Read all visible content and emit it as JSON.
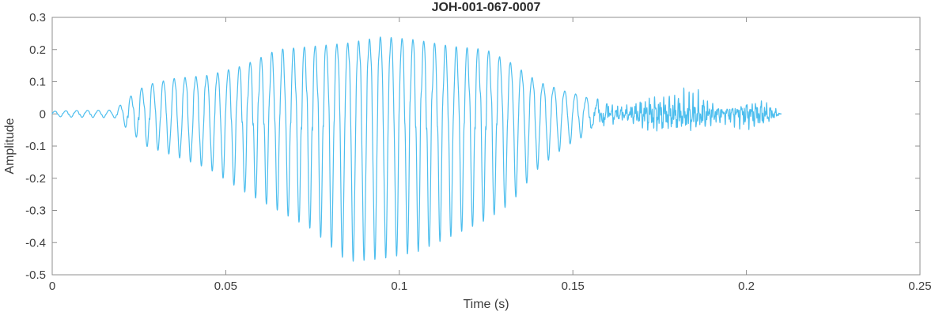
{
  "chart_data": {
    "type": "line",
    "title": "JOH-001-067-0007",
    "xlabel": "Time (s)",
    "ylabel": "Amplitude",
    "xlim": [
      0,
      0.25
    ],
    "ylim": [
      -0.5,
      0.3
    ],
    "grid": false,
    "legend": "none",
    "line_color": "#4DBEEE",
    "axis_color": "#8f8f8f",
    "text_color": "#3c3c3c",
    "title_color": "#2b2b2b",
    "xticks": {
      "values": [
        0,
        0.05,
        0.1,
        0.15,
        0.2,
        0.25
      ],
      "labels": [
        "0",
        "0.05",
        "0.1",
        "0.15",
        "0.2",
        "0.25"
      ]
    },
    "yticks": {
      "values": [
        -0.5,
        -0.4,
        -0.3,
        -0.2,
        -0.1,
        0,
        0.1,
        0.2,
        0.3
      ],
      "labels": [
        "-0.5",
        "-0.4",
        "-0.3",
        "-0.2",
        "-0.1",
        "0",
        "0.1",
        "0.2",
        "0.3"
      ]
    },
    "waveform": {
      "description": "speech-like waveform, asymmetric: positive peaks to ~+0.24, negative spikes to ~-0.48 near t=0.085s, low-amplitude noisy tail from ~0.155s, signal ends at 0.21s",
      "t_end": 0.21,
      "carrier_hz": 320,
      "sample_rate_hz": 24000,
      "noise_transition_s": 0.152,
      "envelope": {
        "t": [
          0,
          0.005,
          0.018,
          0.022,
          0.027,
          0.035,
          0.045,
          0.055,
          0.065,
          0.075,
          0.085,
          0.095,
          0.105,
          0.115,
          0.125,
          0.132,
          0.14,
          0.148,
          0.155,
          0.165,
          0.18,
          0.195,
          0.205,
          0.21
        ],
        "pos": [
          0.008,
          0.01,
          0.012,
          0.05,
          0.09,
          0.11,
          0.12,
          0.15,
          0.2,
          0.21,
          0.22,
          0.24,
          0.23,
          0.21,
          0.2,
          0.16,
          0.1,
          0.07,
          0.05,
          0.05,
          0.05,
          0.05,
          0.04,
          0.0
        ],
        "neg": [
          0.008,
          0.01,
          0.012,
          0.05,
          0.1,
          0.13,
          0.17,
          0.24,
          0.3,
          0.36,
          0.46,
          0.45,
          0.43,
          0.38,
          0.33,
          0.28,
          0.17,
          0.1,
          0.06,
          0.05,
          0.05,
          0.05,
          0.04,
          0.0
        ]
      }
    }
  }
}
